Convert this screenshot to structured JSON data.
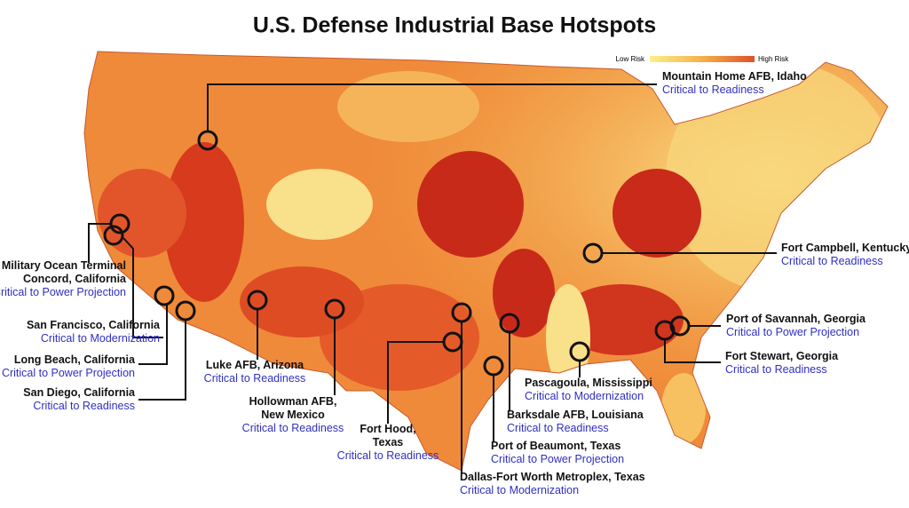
{
  "title": "U.S. Defense Industrial Base Hotspots",
  "legend": {
    "low": "Low Risk",
    "high": "High Risk"
  },
  "hotspots": [
    {
      "name": [
        "Mountain Home AFB, Idaho"
      ],
      "category": "Critical to Readiness"
    },
    {
      "name": [
        "Military Ocean Terminal",
        "Concord, California"
      ],
      "category": "Critical to Power Projection"
    },
    {
      "name": [
        "San Francisco, California"
      ],
      "category": "Critical to Modernization"
    },
    {
      "name": [
        "Long Beach, California"
      ],
      "category": "Critical to Power Projection"
    },
    {
      "name": [
        "San Diego, California"
      ],
      "category": "Critical to Readiness"
    },
    {
      "name": [
        "Luke AFB, Arizona"
      ],
      "category": "Critical to Readiness"
    },
    {
      "name": [
        "Hollowman AFB,",
        "New Mexico"
      ],
      "category": "Critical to Readiness"
    },
    {
      "name": [
        "Fort Hood,",
        "Texas"
      ],
      "category": "Critical to Readiness"
    },
    {
      "name": [
        "Dallas-Fort Worth Metroplex, Texas"
      ],
      "category": "Critical to Modernization"
    },
    {
      "name": [
        "Port of Beaumont, Texas"
      ],
      "category": "Critical to Power Projection"
    },
    {
      "name": [
        "Barksdale AFB, Louisiana"
      ],
      "category": "Critical to Readiness"
    },
    {
      "name": [
        "Pascagoula, Mississippi"
      ],
      "category": "Critical to Modernization"
    },
    {
      "name": [
        "Fort Campbell, Kentucky"
      ],
      "category": "Critical to Readiness"
    },
    {
      "name": [
        "Port of Savannah, Georgia"
      ],
      "category": "Critical to Power Projection"
    },
    {
      "name": [
        "Fort Stewart, Georgia"
      ],
      "category": "Critical to Readiness"
    }
  ]
}
